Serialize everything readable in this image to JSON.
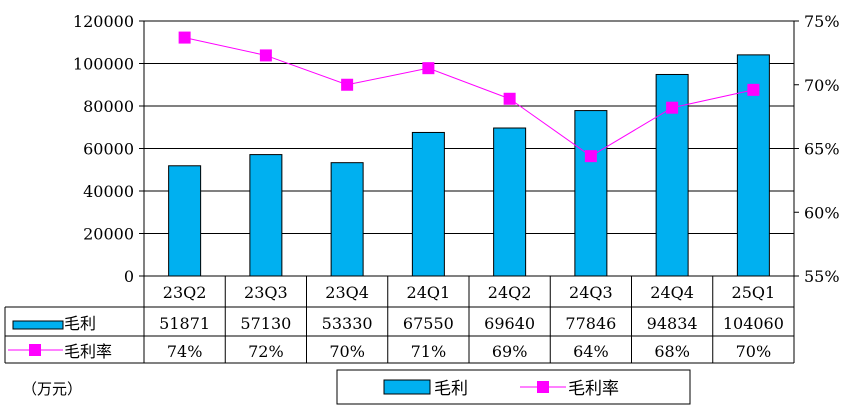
{
  "chart_data": {
    "type": "bar",
    "categories": [
      "23Q2",
      "23Q3",
      "23Q4",
      "24Q1",
      "24Q2",
      "24Q3",
      "24Q4",
      "25Q1"
    ],
    "series": [
      {
        "name": "毛利",
        "type": "bar",
        "axis": "left",
        "values": [
          51871,
          57130,
          53330,
          67550,
          69640,
          77846,
          94834,
          104060
        ],
        "labels": [
          "51871",
          "57130",
          "53330",
          "67550",
          "69640",
          "77846",
          "94834",
          "104060"
        ]
      },
      {
        "name": "毛利率",
        "type": "line",
        "axis": "right",
        "values": [
          73.7,
          72.3,
          70.0,
          71.3,
          68.9,
          64.4,
          68.2,
          69.6
        ],
        "labels": [
          "74%",
          "72%",
          "70%",
          "71%",
          "69%",
          "64%",
          "68%",
          "70%"
        ]
      }
    ],
    "y_left": {
      "range": [
        0,
        120000
      ],
      "ticks": [
        "0",
        "20000",
        "40000",
        "60000",
        "80000",
        "100000",
        "120000"
      ]
    },
    "y_right": {
      "range": [
        55,
        75
      ],
      "ticks": [
        "55%",
        "60%",
        "65%",
        "70%",
        "75%"
      ]
    },
    "unit": "（万元）",
    "grid": "horizontal",
    "legend": "bottom",
    "data_table": true,
    "colors": {
      "bar": "#00B0F0",
      "line": "#FF00FF",
      "marker": "#FF00FF",
      "grid": "#000000"
    }
  }
}
